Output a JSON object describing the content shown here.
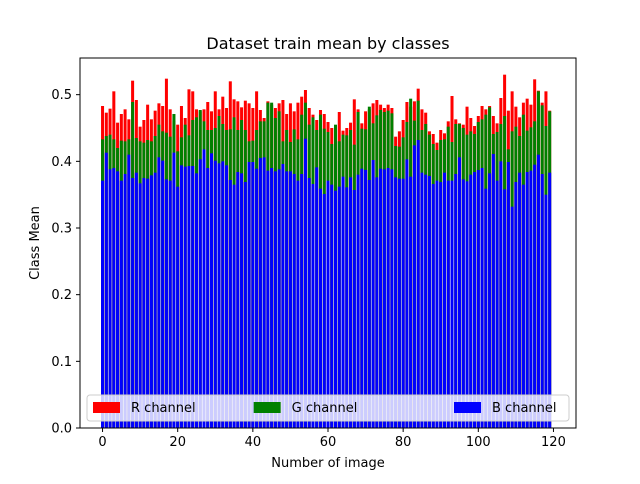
{
  "chart_data": {
    "type": "bar",
    "title": "Dataset train mean by classes",
    "xlabel": "Number of image",
    "ylabel": "Class Mean",
    "xlim": [
      -6,
      126
    ],
    "ylim": [
      0,
      0.555
    ],
    "xticks": [
      0,
      20,
      40,
      60,
      80,
      100,
      120
    ],
    "yticks": [
      0.0,
      0.1,
      0.2,
      0.3,
      0.4,
      0.5
    ],
    "xtick_labels": [
      "0",
      "20",
      "40",
      "60",
      "80",
      "100",
      "120"
    ],
    "ytick_labels": [
      "0.0",
      "0.1",
      "0.2",
      "0.3",
      "0.4",
      "0.5"
    ],
    "grid": false,
    "legend_position": "bottom, spanning full width",
    "x": [
      0,
      1,
      2,
      3,
      4,
      5,
      6,
      7,
      8,
      9,
      10,
      11,
      12,
      13,
      14,
      15,
      16,
      17,
      18,
      19,
      20,
      21,
      22,
      23,
      24,
      25,
      26,
      27,
      28,
      29,
      30,
      31,
      32,
      33,
      34,
      35,
      36,
      37,
      38,
      39,
      40,
      41,
      42,
      43,
      44,
      45,
      46,
      47,
      48,
      49,
      50,
      51,
      52,
      53,
      54,
      55,
      56,
      57,
      58,
      59,
      60,
      61,
      62,
      63,
      64,
      65,
      66,
      67,
      68,
      69,
      70,
      71,
      72,
      73,
      74,
      75,
      76,
      77,
      78,
      79,
      80,
      81,
      82,
      83,
      84,
      85,
      86,
      87,
      88,
      89,
      90,
      91,
      92,
      93,
      94,
      95,
      96,
      97,
      98,
      99,
      100,
      101,
      102,
      103,
      104,
      105,
      106,
      107,
      108,
      109,
      110,
      111,
      112,
      113,
      114,
      115,
      116,
      117,
      118,
      119
    ],
    "series": [
      {
        "name": "R channel",
        "color": "#ff0000",
        "values": [
          0.483,
          0.473,
          0.479,
          0.505,
          0.458,
          0.471,
          0.478,
          0.463,
          0.521,
          0.492,
          0.452,
          0.462,
          0.485,
          0.463,
          0.476,
          0.487,
          0.483,
          0.524,
          0.478,
          0.461,
          0.455,
          0.483,
          0.465,
          0.508,
          0.505,
          0.478,
          0.475,
          0.478,
          0.489,
          0.475,
          0.505,
          0.478,
          0.497,
          0.48,
          0.52,
          0.493,
          0.49,
          0.481,
          0.491,
          0.487,
          0.48,
          0.505,
          0.477,
          0.465,
          0.49,
          0.485,
          0.48,
          0.487,
          0.492,
          0.471,
          0.487,
          0.475,
          0.488,
          0.497,
          0.507,
          0.48,
          0.47,
          0.462,
          0.477,
          0.471,
          0.459,
          0.45,
          0.453,
          0.474,
          0.446,
          0.45,
          0.458,
          0.493,
          0.478,
          0.457,
          0.475,
          0.478,
          0.487,
          0.492,
          0.485,
          0.48,
          0.485,
          0.48,
          0.437,
          0.445,
          0.462,
          0.489,
          0.482,
          0.49,
          0.509,
          0.478,
          0.473,
          0.445,
          0.441,
          0.428,
          0.447,
          0.442,
          0.46,
          0.498,
          0.463,
          0.457,
          0.455,
          0.482,
          0.465,
          0.453,
          0.468,
          0.483,
          0.478,
          0.483,
          0.468,
          0.457,
          0.495,
          0.53,
          0.476,
          0.505,
          0.482,
          0.466,
          0.488,
          0.494,
          0.485,
          0.523,
          0.506,
          0.488,
          0.505,
          0.476
        ]
      },
      {
        "name": "G channel",
        "color": "#008000",
        "values": [
          0.433,
          0.438,
          0.44,
          0.433,
          0.42,
          0.431,
          0.43,
          0.433,
          0.489,
          0.435,
          0.43,
          0.428,
          0.432,
          0.43,
          0.438,
          0.455,
          0.445,
          0.443,
          0.437,
          0.471,
          0.415,
          0.436,
          0.455,
          0.439,
          0.462,
          0.466,
          0.477,
          0.46,
          0.447,
          0.447,
          0.45,
          0.468,
          0.456,
          0.447,
          0.448,
          0.466,
          0.447,
          0.462,
          0.447,
          0.43,
          0.431,
          0.447,
          0.46,
          0.46,
          0.488,
          0.488,
          0.465,
          0.475,
          0.43,
          0.447,
          0.429,
          0.448,
          0.433,
          0.47,
          0.488,
          0.455,
          0.466,
          0.447,
          0.47,
          0.449,
          0.444,
          0.426,
          0.455,
          0.43,
          0.44,
          0.439,
          0.447,
          0.425,
          0.474,
          0.449,
          0.448,
          0.482,
          0.457,
          0.469,
          0.477,
          0.474,
          0.476,
          0.472,
          0.423,
          0.422,
          0.436,
          0.459,
          0.494,
          0.461,
          0.491,
          0.447,
          0.456,
          0.44,
          0.426,
          0.417,
          0.432,
          0.433,
          0.452,
          0.429,
          0.456,
          0.456,
          0.45,
          0.44,
          0.445,
          0.441,
          0.459,
          0.463,
          0.47,
          0.481,
          0.441,
          0.444,
          0.456,
          0.468,
          0.418,
          0.445,
          0.452,
          0.438,
          0.47,
          0.446,
          0.451,
          0.46,
          0.505,
          0.484,
          0.453,
          0.475
        ]
      },
      {
        "name": "B channel",
        "color": "#0000ff",
        "values": [
          0.371,
          0.413,
          0.388,
          0.39,
          0.385,
          0.371,
          0.381,
          0.41,
          0.375,
          0.383,
          0.367,
          0.375,
          0.374,
          0.379,
          0.383,
          0.406,
          0.401,
          0.373,
          0.371,
          0.413,
          0.362,
          0.394,
          0.392,
          0.393,
          0.393,
          0.382,
          0.403,
          0.418,
          0.39,
          0.412,
          0.401,
          0.397,
          0.4,
          0.394,
          0.372,
          0.365,
          0.384,
          0.382,
          0.369,
          0.399,
          0.399,
          0.389,
          0.405,
          0.406,
          0.386,
          0.39,
          0.385,
          0.388,
          0.396,
          0.385,
          0.385,
          0.381,
          0.371,
          0.381,
          0.434,
          0.375,
          0.366,
          0.391,
          0.359,
          0.351,
          0.371,
          0.365,
          0.356,
          0.362,
          0.377,
          0.361,
          0.376,
          0.357,
          0.38,
          0.389,
          0.387,
          0.372,
          0.402,
          0.376,
          0.389,
          0.388,
          0.39,
          0.388,
          0.376,
          0.374,
          0.374,
          0.403,
          0.377,
          0.424,
          0.432,
          0.383,
          0.38,
          0.378,
          0.366,
          0.371,
          0.369,
          0.383,
          0.371,
          0.371,
          0.381,
          0.406,
          0.373,
          0.37,
          0.38,
          0.384,
          0.387,
          0.39,
          0.359,
          0.382,
          0.411,
          0.371,
          0.4,
          0.358,
          0.399,
          0.332,
          0.369,
          0.383,
          0.365,
          0.384,
          0.386,
          0.395,
          0.41,
          0.381,
          0.35,
          0.383
        ]
      }
    ]
  }
}
